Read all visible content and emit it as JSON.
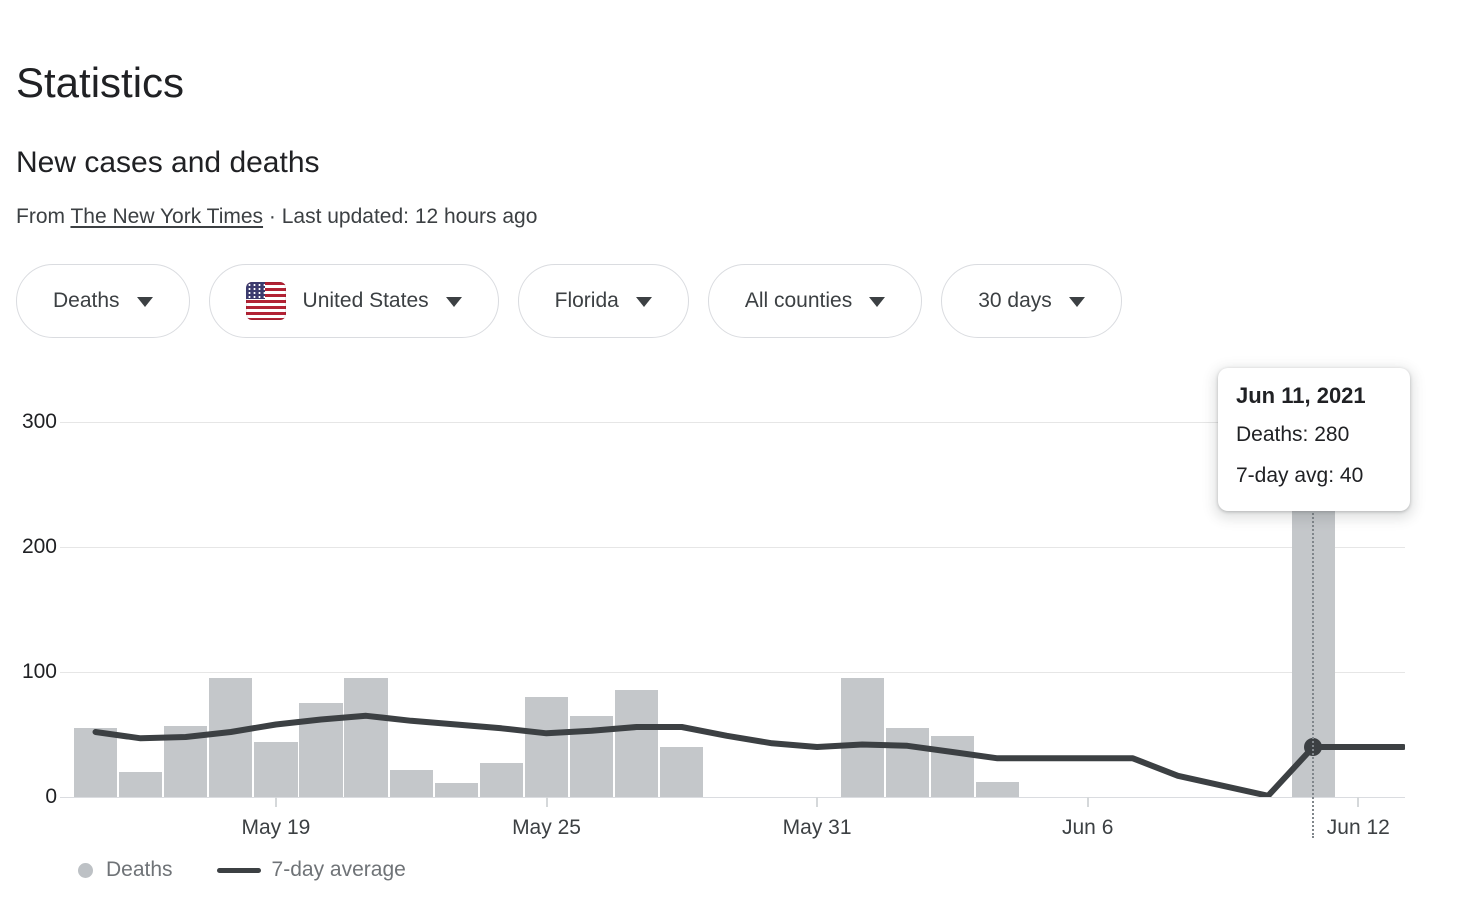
{
  "page": {
    "title": "Statistics",
    "section_title": "New cases and deaths",
    "source_prefix": "From ",
    "source_link": "The New York Times",
    "source_suffix": " · Last updated: 12 hours ago"
  },
  "filters": {
    "metric": "Deaths",
    "country": "United States",
    "region": "Florida",
    "subregion": "All counties",
    "range": "30 days"
  },
  "tooltip": {
    "date": "Jun 11, 2021",
    "line1": "Deaths: 280",
    "line2": "7-day avg: 40"
  },
  "legend": {
    "bars_label": "Deaths",
    "line_label": "7-day average"
  },
  "chart_data": {
    "type": "bar+line",
    "x": [
      "May 15",
      "May 16",
      "May 17",
      "May 18",
      "May 19",
      "May 20",
      "May 21",
      "May 22",
      "May 23",
      "May 24",
      "May 25",
      "May 26",
      "May 27",
      "May 28",
      "May 29",
      "May 30",
      "May 31",
      "Jun 1",
      "Jun 2",
      "Jun 3",
      "Jun 4",
      "Jun 5",
      "Jun 6",
      "Jun 7",
      "Jun 8",
      "Jun 9",
      "Jun 10",
      "Jun 11",
      "Jun 12",
      "Jun 13"
    ],
    "series": [
      {
        "name": "Deaths",
        "type": "bar",
        "color": "#c4c7ca",
        "values": [
          55,
          20,
          57,
          95,
          44,
          75,
          95,
          22,
          11,
          27,
          80,
          65,
          86,
          40,
          0,
          0,
          0,
          95,
          55,
          49,
          12,
          0,
          0,
          0,
          0,
          0,
          0,
          280,
          0,
          0
        ]
      },
      {
        "name": "7-day average",
        "type": "line",
        "color": "#3c4043",
        "values": [
          52,
          47,
          48,
          52,
          58,
          62,
          65,
          61,
          58,
          55,
          51,
          53,
          56,
          56,
          49,
          43,
          40,
          42,
          41,
          36,
          31,
          31,
          31,
          31,
          17,
          9,
          1,
          40,
          40,
          40
        ]
      }
    ],
    "ylim": [
      0,
      300
    ],
    "y_axis_labels": [
      "300",
      "200",
      "100",
      "0"
    ],
    "xtick_labels": [
      "May 19",
      "May 25",
      "May 31",
      "Jun 6",
      "Jun 12"
    ],
    "xtick_day_indices": [
      4,
      10,
      16,
      22,
      28
    ],
    "highlight": {
      "day_index": 27,
      "date": "Jun 11, 2021",
      "deaths": 280,
      "avg": 40
    },
    "grid": "horizontal",
    "legend_position": "bottom-left"
  }
}
